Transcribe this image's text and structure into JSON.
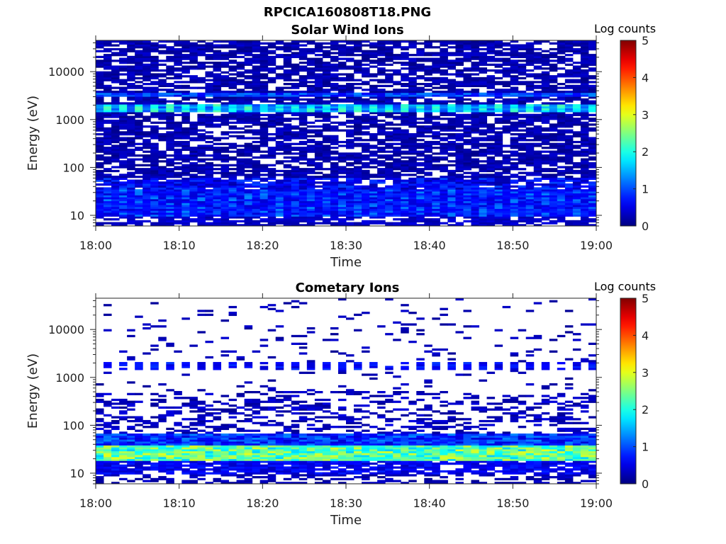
{
  "figure_title": "RPCICA160808T18.PNG",
  "chart_data": [
    {
      "type": "heatmap",
      "title": "Solar Wind Ions",
      "xlabel": "Time",
      "ylabel": "Energy (eV)",
      "x_ticks": [
        "18:00",
        "18:10",
        "18:20",
        "18:30",
        "18:40",
        "18:50",
        "19:00"
      ],
      "xlim": [
        "18:00",
        "19:00"
      ],
      "y_scale": "log",
      "y_ticks": [
        "10",
        "100",
        "1000",
        "10000"
      ],
      "ylim": [
        6,
        45000
      ],
      "colorbar": {
        "label": "Log counts",
        "range": [
          0,
          5
        ],
        "ticks": [
          "0",
          "1",
          "2",
          "3",
          "4",
          "5"
        ],
        "colormap": "jet"
      },
      "features": [
        {
          "energy_eV": [
            1500,
            1900
          ],
          "log_counts": 2.0,
          "description": "solar wind proton band"
        },
        {
          "energy_eV": [
            3000,
            3800
          ],
          "log_counts": 1.1,
          "description": "alpha band"
        },
        {
          "energy_eV": [
            20,
            30
          ],
          "log_counts": 1.2,
          "description": "low-energy band"
        }
      ]
    },
    {
      "type": "heatmap",
      "title": "Cometary Ions",
      "xlabel": "Time",
      "ylabel": "Energy (eV)",
      "x_ticks": [
        "18:00",
        "18:10",
        "18:20",
        "18:30",
        "18:40",
        "18:50",
        "19:00"
      ],
      "xlim": [
        "18:00",
        "19:00"
      ],
      "y_scale": "log",
      "y_ticks": [
        "10",
        "100",
        "1000",
        "10000"
      ],
      "ylim": [
        6,
        45000
      ],
      "colorbar": {
        "label": "Log counts",
        "range": [
          0,
          5
        ],
        "ticks": [
          "0",
          "1",
          "2",
          "3",
          "4",
          "5"
        ],
        "colormap": "jet"
      },
      "features": [
        {
          "energy_eV": [
            20,
            35
          ],
          "log_counts": 2.6,
          "description": "cometary ion band"
        },
        {
          "energy_eV": [
            1500,
            2000
          ],
          "log_counts": 0.6,
          "description": "sparse band"
        }
      ]
    }
  ]
}
